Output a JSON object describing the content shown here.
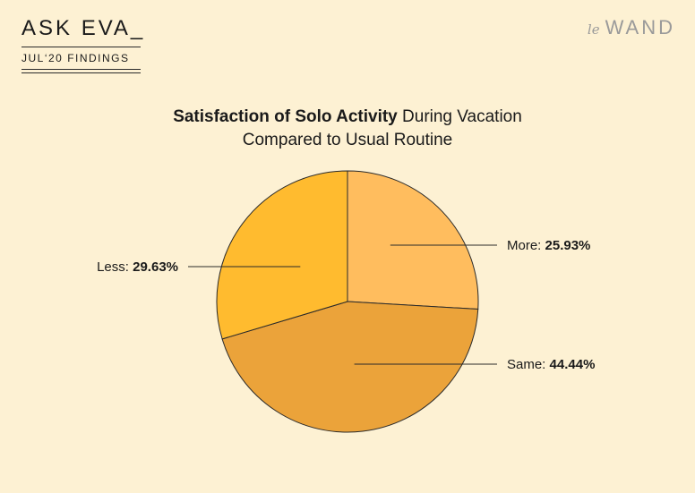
{
  "header": {
    "brand_title": "ASK EVA_",
    "brand_subtitle": "JUL‘20 FINDINGS",
    "logo_prefix": "le",
    "logo_word": "WAND"
  },
  "chart_data": {
    "type": "pie",
    "title_bold": "Satisfaction of Solo Activity",
    "title_rest": "During Vacation",
    "title_line2": "Compared to Usual Routine",
    "slices": [
      {
        "label": "More",
        "value": 25.93,
        "display": "25.93%",
        "color": "#ffbd5e"
      },
      {
        "label": "Same",
        "value": 44.44,
        "display": "44.44%",
        "color": "#eba33a"
      },
      {
        "label": "Less",
        "value": 29.63,
        "display": "29.63%",
        "color": "#ffbb2f"
      }
    ]
  }
}
